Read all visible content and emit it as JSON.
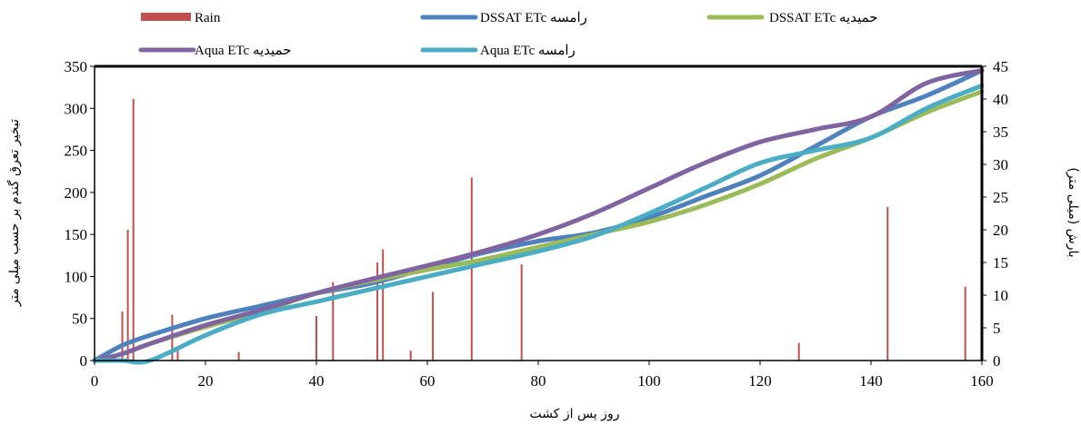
{
  "chart_data": {
    "type": "line",
    "xlabel": "روز پس از کشت",
    "ylabel_left": "تبخیر تعرق گندم بر حسب میلی متر",
    "ylabel_right": "بارش (میلی متر)",
    "xlim": [
      0,
      160
    ],
    "ylim_left": [
      0,
      350
    ],
    "ylim_right": [
      0,
      45
    ],
    "x_ticks": [
      0,
      20,
      40,
      60,
      80,
      100,
      120,
      140,
      160
    ],
    "y_left_ticks": [
      0,
      50,
      100,
      150,
      200,
      250,
      300,
      350
    ],
    "y_right_ticks": [
      0,
      5,
      10,
      15,
      20,
      25,
      30,
      35,
      40,
      45
    ],
    "grid": false,
    "legend_position": "top",
    "rain": {
      "name": "Rain",
      "color": "#c0504d",
      "axis": "right",
      "x": [
        5,
        6,
        7,
        14,
        15,
        26,
        40,
        43,
        51,
        52,
        57,
        61,
        68,
        77,
        127,
        143,
        157
      ],
      "values": [
        7.5,
        20,
        40,
        7,
        1.5,
        1.3,
        6.8,
        12,
        15,
        17,
        1.5,
        10.5,
        28,
        14.7,
        2.7,
        23.5,
        11.3
      ]
    },
    "series": [
      {
        "name": "DSSAT ETc رامسه",
        "color": "#4f81bd",
        "x": [
          0,
          5,
          10,
          20,
          30,
          40,
          50,
          60,
          70,
          80,
          90,
          100,
          110,
          120,
          130,
          140,
          150,
          160
        ],
        "values": [
          0,
          18,
          30,
          50,
          65,
          80,
          92,
          110,
          128,
          142,
          152,
          170,
          195,
          220,
          255,
          290,
          315,
          345
        ]
      },
      {
        "name": "DSSAT ETc حمیدیه",
        "color": "#9bbb59",
        "x": [
          0,
          5,
          10,
          20,
          30,
          40,
          50,
          60,
          70,
          80,
          90,
          100,
          110,
          120,
          130,
          140,
          150,
          160
        ],
        "values": [
          0,
          8,
          20,
          40,
          58,
          80,
          95,
          108,
          120,
          135,
          150,
          165,
          185,
          210,
          240,
          265,
          295,
          320
        ]
      },
      {
        "name": "Aqua ETc  حمیدیه",
        "color": "#8064a2",
        "x": [
          0,
          5,
          10,
          20,
          30,
          40,
          50,
          60,
          70,
          80,
          90,
          100,
          110,
          120,
          130,
          140,
          150,
          160
        ],
        "values": [
          0,
          8,
          20,
          42,
          60,
          80,
          97,
          113,
          130,
          150,
          175,
          205,
          235,
          260,
          275,
          290,
          330,
          345
        ]
      },
      {
        "name": "Aqua ETc  رامسه",
        "color": "#4bacc6",
        "x": [
          0,
          5,
          10,
          20,
          30,
          40,
          50,
          60,
          70,
          80,
          90,
          100,
          110,
          120,
          130,
          140,
          150,
          160
        ],
        "values": [
          0,
          0,
          0,
          30,
          55,
          70,
          85,
          100,
          115,
          130,
          148,
          175,
          205,
          235,
          250,
          265,
          300,
          327
        ]
      }
    ]
  }
}
